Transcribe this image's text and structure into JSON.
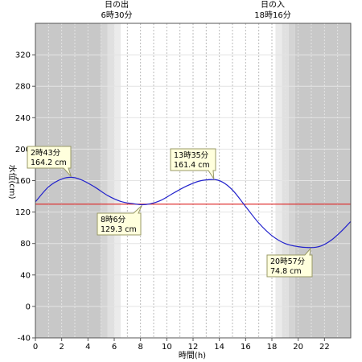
{
  "chart_data": {
    "type": "line",
    "xlabel": "時間(h)",
    "ylabel": "水位(cm)",
    "xlim": [
      0,
      24
    ],
    "ylim": [
      -40,
      360
    ],
    "x_ticks": [
      0,
      2,
      4,
      6,
      8,
      10,
      12,
      14,
      16,
      18,
      20,
      22
    ],
    "y_ticks": [
      -40,
      0,
      40,
      80,
      120,
      160,
      200,
      240,
      280,
      320
    ],
    "reference_line": {
      "y": 130,
      "color": "#dd2222"
    },
    "sunrise": {
      "time": 6.5,
      "title": "日の出",
      "label": "6時30分"
    },
    "sunset": {
      "time": 18.27,
      "title": "日の入",
      "label": "18時16分"
    },
    "series": [
      {
        "color": "#2222cc",
        "x": [
          0,
          1,
          2,
          2.72,
          3.5,
          4.5,
          5.5,
          6.5,
          7.5,
          8.1,
          8.75,
          9.5,
          10.5,
          11.5,
          12.5,
          13.58,
          14.25,
          15,
          16,
          17,
          18,
          19,
          20,
          20.95,
          21.75,
          22.5,
          23.25,
          24
        ],
        "y": [
          133,
          152,
          162,
          164.2,
          161,
          152,
          141,
          133.5,
          130.5,
          129.3,
          130.5,
          134.5,
          144,
          153,
          159.5,
          161.4,
          158,
          148,
          127,
          106,
          90,
          80,
          76,
          74.8,
          77,
          84,
          95,
          108
        ]
      }
    ],
    "annotations": [
      {
        "time_label": "2時43分",
        "value_label": "164.2 cm",
        "x": 2.72,
        "y": 164.2
      },
      {
        "time_label": "8時6分",
        "value_label": "129.3 cm",
        "x": 8.1,
        "y": 129.3
      },
      {
        "time_label": "13時35分",
        "value_label": "161.4 cm",
        "x": 13.58,
        "y": 161.4
      },
      {
        "time_label": "20時57分",
        "value_label": "74.8 cm",
        "x": 20.95,
        "y": 74.8
      }
    ],
    "colors": {
      "night": "#c8c8c8",
      "twilight": [
        "#d4d4d4",
        "#e0e0e0",
        "#ebebeb"
      ],
      "day": "#ffffff",
      "grid_night": "#e4e4e4",
      "grid_day": "#bbbbbb",
      "annotation_bg": "#ffffdd",
      "annotation_border": "#999966"
    }
  }
}
